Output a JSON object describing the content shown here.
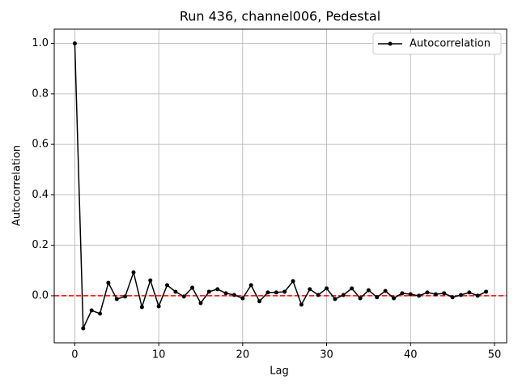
{
  "chart_data": {
    "type": "line",
    "title": "Run 436, channel006, Pedestal",
    "xlabel": "Lag",
    "ylabel": "Autocorrelation",
    "x": [
      0,
      1,
      2,
      3,
      4,
      5,
      6,
      7,
      8,
      9,
      10,
      11,
      12,
      13,
      14,
      15,
      16,
      17,
      18,
      19,
      20,
      21,
      22,
      23,
      24,
      25,
      26,
      27,
      28,
      29,
      30,
      31,
      32,
      33,
      34,
      35,
      36,
      37,
      38,
      39,
      40,
      41,
      42,
      43,
      44,
      45,
      46,
      47,
      48,
      49
    ],
    "series": [
      {
        "name": "Autocorrelation",
        "color": "#000000",
        "values": [
          1.0,
          -0.129,
          -0.058,
          -0.071,
          0.051,
          -0.013,
          -0.003,
          0.093,
          -0.045,
          0.061,
          -0.042,
          0.042,
          0.016,
          -0.003,
          0.032,
          -0.029,
          0.016,
          0.026,
          0.01,
          0.003,
          -0.01,
          0.042,
          -0.022,
          0.013,
          0.013,
          0.016,
          0.058,
          -0.035,
          0.026,
          0.003,
          0.029,
          -0.013,
          0.003,
          0.029,
          -0.01,
          0.022,
          -0.006,
          0.019,
          -0.01,
          0.01,
          0.006,
          0.0,
          0.013,
          0.006,
          0.01,
          -0.006,
          0.003,
          0.013,
          0.0,
          0.016
        ]
      }
    ],
    "reference_line": {
      "value": 0,
      "color": "#ff0000"
    },
    "xlim": [
      -2.45,
      51.45
    ],
    "ylim": [
      -0.1865,
      1.0565
    ],
    "xticks": [
      0,
      10,
      20,
      30,
      40,
      50
    ],
    "yticks": [
      {
        "value": 0,
        "label": "0.0"
      },
      {
        "value": 0.2,
        "label": "0.2"
      },
      {
        "value": 0.4,
        "label": "0.4"
      },
      {
        "value": 0.6,
        "label": "0.6"
      },
      {
        "value": 0.8,
        "label": "0.8"
      },
      {
        "value": 1,
        "label": "1.0"
      }
    ],
    "grid": true,
    "legend": "upper right"
  }
}
